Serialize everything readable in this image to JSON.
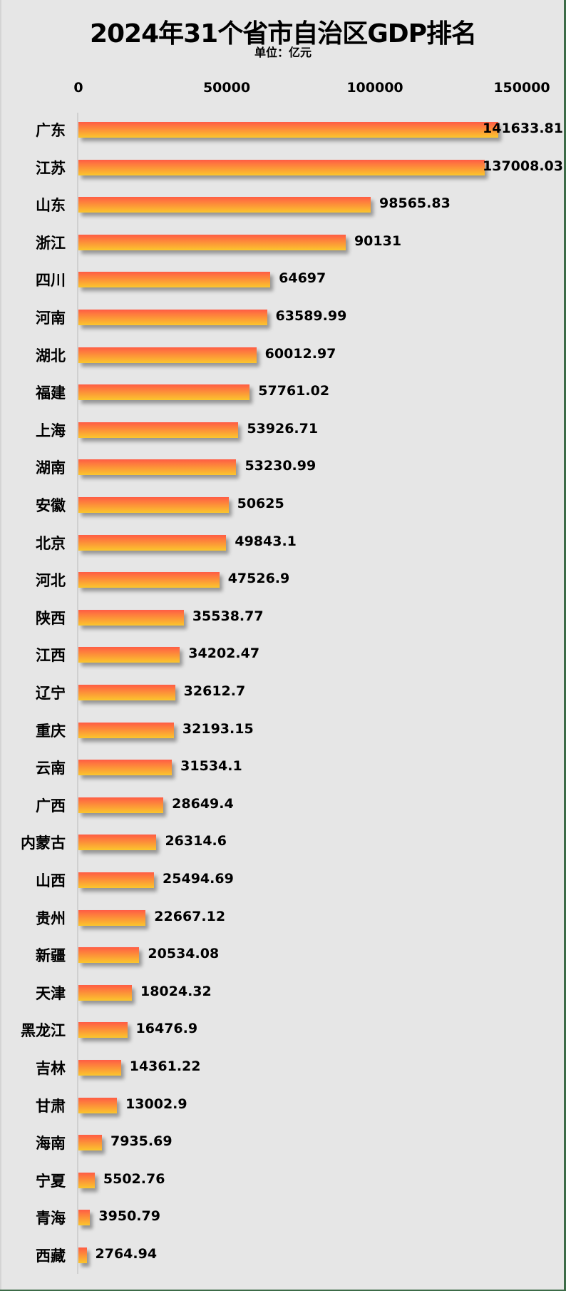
{
  "chart_data": {
    "type": "bar",
    "orientation": "horizontal",
    "title": "2024年31个省市自治区GDP排名",
    "subtitle": "单位：亿元",
    "xlabel": "",
    "ylabel": "",
    "xlim": [
      0,
      150000
    ],
    "x_ticks": [
      "0",
      "50000",
      "100000",
      "150000"
    ],
    "x_axis_position": "top",
    "grid": false,
    "legend": null,
    "bar_gradient": [
      "#ff5c45",
      "#fbc62e"
    ],
    "categories": [
      "广东",
      "江苏",
      "山东",
      "浙江",
      "四川",
      "河南",
      "湖北",
      "福建",
      "上海",
      "湖南",
      "安徽",
      "北京",
      "河北",
      "陕西",
      "江西",
      "辽宁",
      "重庆",
      "云南",
      "广西",
      "内蒙古",
      "山西",
      "贵州",
      "新疆",
      "天津",
      "黑龙江",
      "吉林",
      "甘肃",
      "海南",
      "宁夏",
      "青海",
      "西藏"
    ],
    "values": [
      141633.81,
      137008.03,
      98565.83,
      90131,
      64697,
      63589.99,
      60012.97,
      57761.02,
      53926.71,
      53230.99,
      50625,
      49843.1,
      47526.9,
      35538.77,
      34202.47,
      32612.7,
      32193.15,
      31534.1,
      28649.4,
      26314.6,
      25494.69,
      22667.12,
      20534.08,
      18024.32,
      16476.9,
      14361.22,
      13002.9,
      7935.69,
      5502.76,
      3950.79,
      2764.94
    ],
    "value_labels": [
      "141633.81",
      "137008.03",
      "98565.83",
      "90131",
      "64697",
      "63589.99",
      "60012.97",
      "57761.02",
      "53926.71",
      "53230.99",
      "50625",
      "49843.1",
      "47526.9",
      "35538.77",
      "34202.47",
      "32612.7",
      "32193.15",
      "31534.1",
      "28649.4",
      "26314.6",
      "25494.69",
      "22667.12",
      "20534.08",
      "18024.32",
      "16476.9",
      "14361.22",
      "13002.9",
      "7935.69",
      "5502.76",
      "3950.79",
      "2764.94"
    ]
  }
}
